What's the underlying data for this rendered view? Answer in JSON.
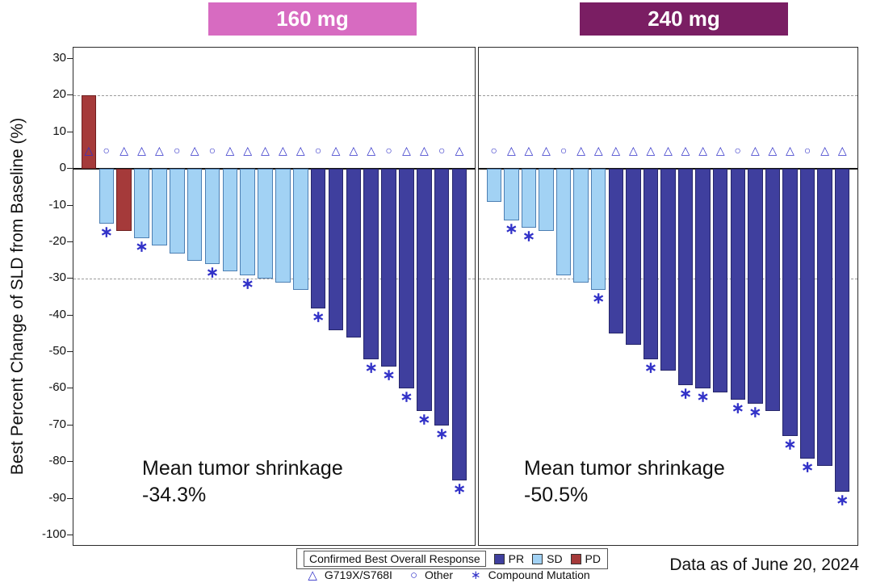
{
  "chart_data": {
    "type": "bar",
    "chart_kind": "waterfall",
    "title": "",
    "ylabel": "Best Percent Change of SLD from Baseline (%)",
    "ylim": [
      -100,
      30
    ],
    "yticks": [
      30,
      20,
      10,
      0,
      -10,
      -20,
      -30,
      -40,
      -50,
      -60,
      -70,
      -80,
      -90,
      -100
    ],
    "reference_lines": [
      20,
      -30
    ],
    "marker_y": 5,
    "grid": "dashed reference lines at +20 and -30 only",
    "colors": {
      "PR": "#3f3f9e",
      "SD": "#a2d2f4",
      "PD": "#a53a3a",
      "marker": "#3232c8",
      "dose_160_header": "#d76bc1",
      "dose_240_header": "#7a1e63"
    },
    "symbols": {
      "g719x": "△",
      "other": "○",
      "compound": "∗"
    },
    "footnote": "Data as of June 20, 2024",
    "legend": {
      "title": "Confirmed Best Overall Response",
      "position": "bottom center",
      "responses": [
        {
          "label": "PR",
          "color": "#3f3f9e"
        },
        {
          "label": "SD",
          "color": "#a2d2f4"
        },
        {
          "label": "PD",
          "color": "#a53a3a"
        }
      ],
      "mutations": [
        {
          "symbol": "△",
          "label": "G719X/S768I"
        },
        {
          "symbol": "○",
          "label": "Other"
        },
        {
          "symbol": "∗",
          "label": "Compound Mutation"
        }
      ]
    },
    "panels": [
      {
        "dose": "160 mg",
        "header_color": "#d76bc1",
        "mean_line1": "Mean tumor shrinkage",
        "mean_line2": "-34.3%",
        "bars": [
          {
            "value": 20,
            "response": "PD",
            "mutation": "G719X/S768I",
            "compound": false
          },
          {
            "value": -15,
            "response": "SD",
            "mutation": "Other",
            "compound": true
          },
          {
            "value": -17,
            "response": "PD",
            "mutation": "G719X/S768I",
            "compound": false
          },
          {
            "value": -19,
            "response": "SD",
            "mutation": "G719X/S768I",
            "compound": true
          },
          {
            "value": -21,
            "response": "SD",
            "mutation": "G719X/S768I",
            "compound": false
          },
          {
            "value": -23,
            "response": "SD",
            "mutation": "Other",
            "compound": false
          },
          {
            "value": -25,
            "response": "SD",
            "mutation": "G719X/S768I",
            "compound": false
          },
          {
            "value": -26,
            "response": "SD",
            "mutation": "Other",
            "compound": true
          },
          {
            "value": -28,
            "response": "SD",
            "mutation": "G719X/S768I",
            "compound": false
          },
          {
            "value": -29,
            "response": "SD",
            "mutation": "G719X/S768I",
            "compound": true
          },
          {
            "value": -30,
            "response": "SD",
            "mutation": "G719X/S768I",
            "compound": false
          },
          {
            "value": -31,
            "response": "SD",
            "mutation": "G719X/S768I",
            "compound": false
          },
          {
            "value": -33,
            "response": "SD",
            "mutation": "G719X/S768I",
            "compound": false
          },
          {
            "value": -38,
            "response": "PR",
            "mutation": "Other",
            "compound": true
          },
          {
            "value": -44,
            "response": "PR",
            "mutation": "G719X/S768I",
            "compound": false
          },
          {
            "value": -46,
            "response": "PR",
            "mutation": "G719X/S768I",
            "compound": false
          },
          {
            "value": -52,
            "response": "PR",
            "mutation": "G719X/S768I",
            "compound": true
          },
          {
            "value": -54,
            "response": "PR",
            "mutation": "Other",
            "compound": true
          },
          {
            "value": -60,
            "response": "PR",
            "mutation": "G719X/S768I",
            "compound": true
          },
          {
            "value": -66,
            "response": "PR",
            "mutation": "G719X/S768I",
            "compound": true
          },
          {
            "value": -70,
            "response": "PR",
            "mutation": "Other",
            "compound": true
          },
          {
            "value": -85,
            "response": "PR",
            "mutation": "G719X/S768I",
            "compound": true
          }
        ]
      },
      {
        "dose": "240 mg",
        "header_color": "#7a1e63",
        "mean_line1": "Mean tumor shrinkage",
        "mean_line2": "-50.5%",
        "bars": [
          {
            "value": -9,
            "response": "SD",
            "mutation": "Other",
            "compound": false
          },
          {
            "value": -14,
            "response": "SD",
            "mutation": "G719X/S768I",
            "compound": true
          },
          {
            "value": -16,
            "response": "SD",
            "mutation": "G719X/S768I",
            "compound": true
          },
          {
            "value": -17,
            "response": "SD",
            "mutation": "G719X/S768I",
            "compound": false
          },
          {
            "value": -29,
            "response": "SD",
            "mutation": "Other",
            "compound": false
          },
          {
            "value": -31,
            "response": "SD",
            "mutation": "G719X/S768I",
            "compound": false
          },
          {
            "value": -33,
            "response": "SD",
            "mutation": "G719X/S768I",
            "compound": true
          },
          {
            "value": -45,
            "response": "PR",
            "mutation": "G719X/S768I",
            "compound": false
          },
          {
            "value": -48,
            "response": "PR",
            "mutation": "G719X/S768I",
            "compound": false
          },
          {
            "value": -52,
            "response": "PR",
            "mutation": "G719X/S768I",
            "compound": true
          },
          {
            "value": -55,
            "response": "PR",
            "mutation": "G719X/S768I",
            "compound": false
          },
          {
            "value": -59,
            "response": "PR",
            "mutation": "G719X/S768I",
            "compound": true
          },
          {
            "value": -60,
            "response": "PR",
            "mutation": "G719X/S768I",
            "compound": true
          },
          {
            "value": -61,
            "response": "PR",
            "mutation": "G719X/S768I",
            "compound": false
          },
          {
            "value": -63,
            "response": "PR",
            "mutation": "Other",
            "compound": true
          },
          {
            "value": -64,
            "response": "PR",
            "mutation": "G719X/S768I",
            "compound": true
          },
          {
            "value": -66,
            "response": "PR",
            "mutation": "G719X/S768I",
            "compound": false
          },
          {
            "value": -73,
            "response": "PR",
            "mutation": "G719X/S768I",
            "compound": true
          },
          {
            "value": -79,
            "response": "PR",
            "mutation": "Other",
            "compound": true
          },
          {
            "value": -81,
            "response": "PR",
            "mutation": "G719X/S768I",
            "compound": false
          },
          {
            "value": -88,
            "response": "PR",
            "mutation": "G719X/S768I",
            "compound": true
          }
        ]
      }
    ]
  }
}
